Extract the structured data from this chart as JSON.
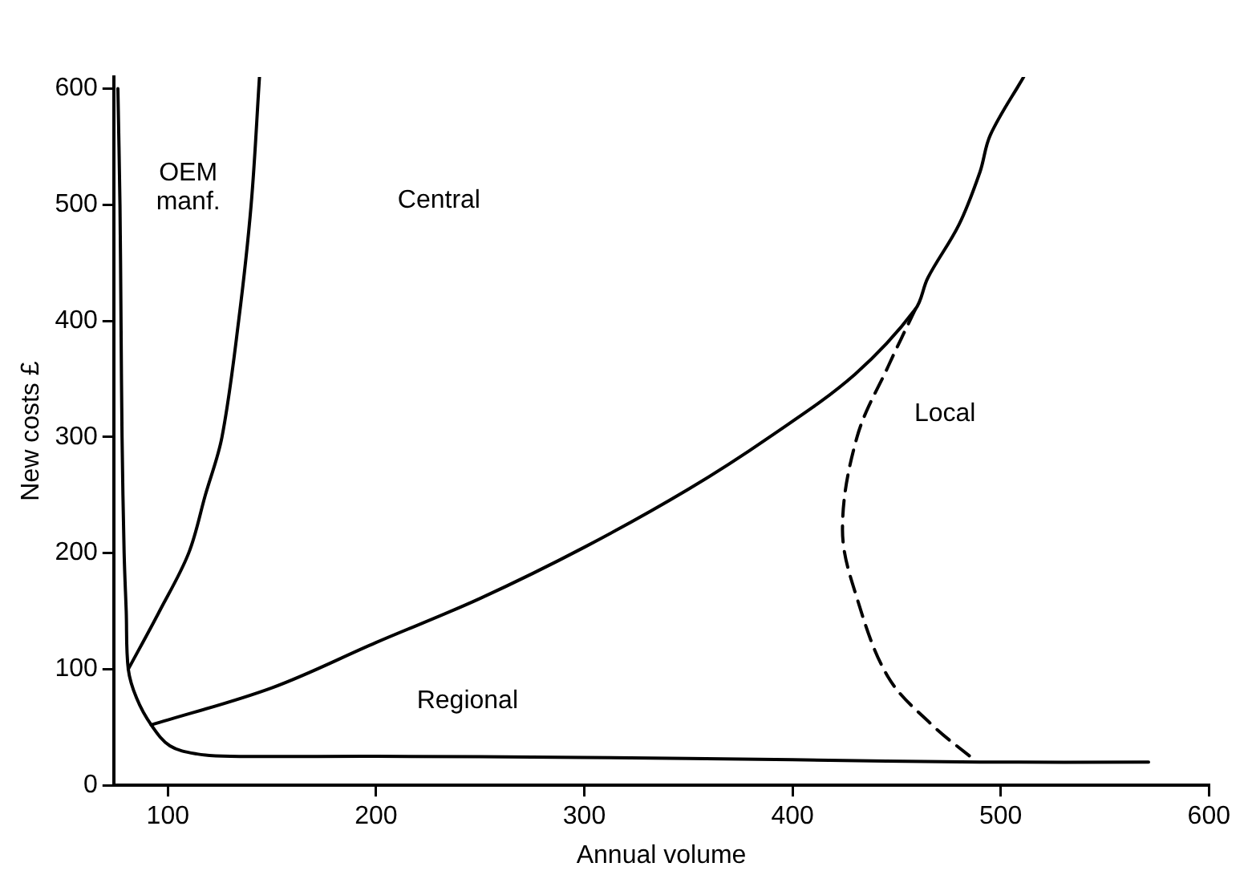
{
  "chart_data": {
    "type": "line",
    "xlabel": "Annual volume",
    "ylabel": "New costs £",
    "xlim": [
      74,
      600
    ],
    "ylim": [
      0,
      610
    ],
    "xticks": [
      100,
      200,
      300,
      400,
      500,
      600
    ],
    "yticks": [
      0,
      100,
      200,
      300,
      400,
      500,
      600
    ],
    "grid": false,
    "legend": false,
    "marker": "none",
    "series": [
      {
        "color": "#000000",
        "line_style": "solid",
        "x": [
          76,
          77,
          77.5,
          78,
          79,
          80,
          81,
          85,
          92,
          101,
          114,
          130,
          200,
          300,
          400,
          490,
          571
        ],
        "values": [
          600,
          500,
          400,
          300,
          200,
          150,
          100,
          75,
          52,
          34,
          27,
          25,
          25,
          24,
          22,
          20,
          20
        ]
      },
      {
        "color": "#000000",
        "line_style": "solid",
        "x": [
          81,
          96,
          110,
          118,
          126,
          134,
          140,
          144
        ],
        "values": [
          100,
          150,
          200,
          250,
          300,
          400,
          500,
          610
        ]
      },
      {
        "color": "#000000",
        "line_style": "solid",
        "x": [
          92,
          150,
          200,
          250,
          300,
          350,
          389,
          430,
          459,
          465,
          480,
          490,
          495,
          511
        ],
        "values": [
          52,
          84,
          123,
          161,
          205,
          255,
          300,
          354,
          410,
          437,
          483,
          528,
          560,
          610
        ]
      },
      {
        "color": "#000000",
        "line_style": "dashed",
        "x": [
          459,
          446,
          431,
          424,
          431,
          446,
          467,
          488
        ],
        "values": [
          410,
          361,
          300,
          220,
          161,
          93,
          52,
          21
        ]
      }
    ],
    "annotations": [
      "OEM\nmanf.",
      "Central",
      "Regional",
      "Local"
    ]
  }
}
